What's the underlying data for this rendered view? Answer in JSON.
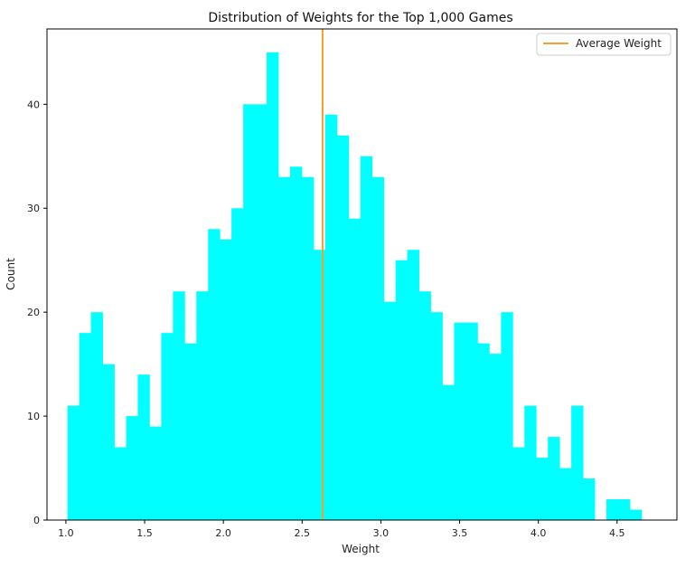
{
  "chart_data": {
    "type": "bar",
    "title": "Distribution of Weights for the Top 1,000 Games",
    "xlabel": "Weight",
    "ylabel": "Count",
    "xlim": [
      0.88,
      4.88
    ],
    "ylim": [
      0,
      47.25
    ],
    "xticks": [
      1.0,
      1.5,
      2.0,
      2.5,
      3.0,
      3.5,
      4.0,
      4.5
    ],
    "xtick_labels": [
      "1.0",
      "1.5",
      "2.0",
      "2.5",
      "3.0",
      "3.5",
      "4.0",
      "4.5"
    ],
    "yticks": [
      0,
      10,
      20,
      30,
      40
    ],
    "ytick_labels": [
      "0",
      "10",
      "20",
      "30",
      "40"
    ],
    "bin_start": 1.01,
    "bin_width": 0.0744,
    "values": [
      11,
      18,
      20,
      15,
      7,
      10,
      14,
      9,
      18,
      22,
      17,
      22,
      28,
      27,
      30,
      40,
      40,
      45,
      33,
      34,
      33,
      26,
      39,
      37,
      29,
      35,
      33,
      21,
      25,
      26,
      22,
      20,
      13,
      19,
      19,
      17,
      16,
      20,
      7,
      11,
      6,
      8,
      5,
      11,
      4,
      0,
      2,
      2,
      1
    ],
    "bar_color": "#00ffff",
    "average_weight": 2.63,
    "average_line_color": "#f5a02a",
    "legend": {
      "label": "Average Weight",
      "location": "top-right"
    },
    "grid": false
  }
}
